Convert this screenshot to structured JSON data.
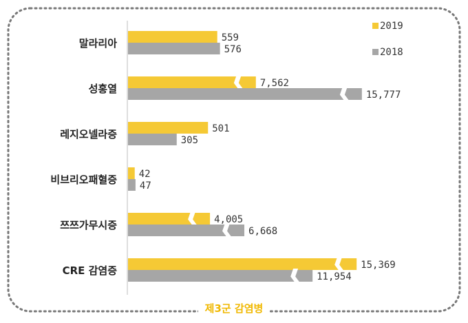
{
  "caption": "제3군 감염병",
  "colors": {
    "y2019": "#f5c935",
    "y2018": "#a6a6a6",
    "frame": "#777777",
    "caption": "#f0b800"
  },
  "chart_data": {
    "type": "bar",
    "orientation": "horizontal",
    "axis_break": "bars for 성홍열, 쯔쯔가무시증 and CRE 감염증 are drawn with break marks",
    "categories": [
      "말라리아",
      "성홍열",
      "레지오넬라증",
      "비브리오패혈증",
      "쯔쯔가무시증",
      "CRE 감염증"
    ],
    "series": [
      {
        "name": "2019",
        "values": [
          559,
          7562,
          501,
          42,
          4005,
          15369
        ]
      },
      {
        "name": "2018",
        "values": [
          576,
          15777,
          305,
          47,
          6668,
          11954
        ]
      }
    ],
    "value_labels": {
      "2019": [
        "559",
        "7,562",
        "501",
        "42",
        "4,005",
        "15,369"
      ],
      "2018": [
        "576",
        "15,777",
        "305",
        "47",
        "6,668",
        "11,954"
      ]
    },
    "legend": [
      "2019",
      "2018"
    ],
    "legend_position": "top-right",
    "grid": false
  }
}
